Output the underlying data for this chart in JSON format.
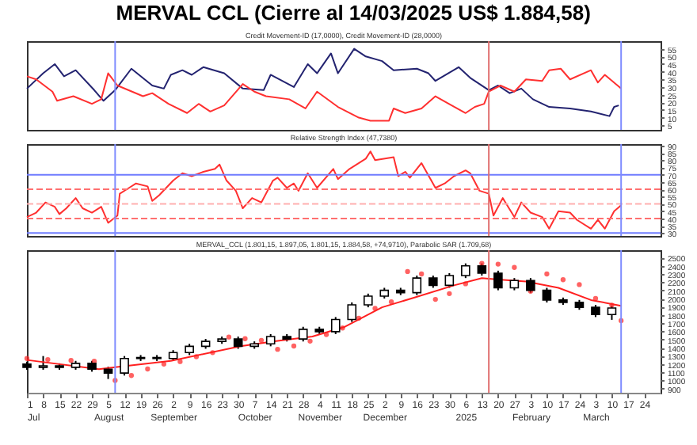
{
  "chart_data": [
    {
      "type": "line",
      "title": "MERVAL CCL (Cierre al 14/03/2025 US$ 1.884,58)",
      "subtitle": "Credit Movement-ID (17,0000), Credit Movement-ID (28,0000)",
      "xlim": [
        "2024-07-01",
        "2025-03-31"
      ],
      "ylim": [
        2,
        60
      ],
      "yticks": [
        5,
        10,
        15,
        20,
        25,
        30,
        35,
        40,
        45,
        50,
        55
      ],
      "tick_labels": "y",
      "ref_lines": [
        {
          "axis": "x",
          "value": "2024-08-08",
          "color": "#7f8cff"
        },
        {
          "axis": "x",
          "value": "2025-01-16",
          "color": "#e07070"
        },
        {
          "axis": "x",
          "value": "2025-03-14",
          "color": "#7f8cff"
        }
      ],
      "series": [
        {
          "color": "#232370",
          "x": [
            "2024-07-01",
            "2024-07-08",
            "2024-07-13",
            "2024-07-17",
            "2024-07-22",
            "2024-07-30",
            "2024-08-03",
            "2024-08-08",
            "2024-08-15",
            "2024-08-24",
            "2024-08-29",
            "2024-09-01",
            "2024-09-06",
            "2024-09-10",
            "2024-09-15",
            "2024-09-24",
            "2024-10-02",
            "2024-10-11",
            "2024-10-14",
            "2024-10-24",
            "2024-10-30",
            "2024-11-03",
            "2024-11-09",
            "2024-11-12",
            "2024-11-19",
            "2024-11-24",
            "2024-12-01",
            "2024-12-06",
            "2024-12-16",
            "2024-12-21",
            "2024-12-24",
            "2025-01-03",
            "2025-01-08",
            "2025-01-16",
            "2025-01-20",
            "2025-01-25",
            "2025-01-30",
            "2025-02-04",
            "2025-02-11",
            "2025-02-20",
            "2025-03-01",
            "2025-03-09",
            "2025-03-11",
            "2025-03-13"
          ],
          "values": [
            29,
            39,
            45,
            37,
            41,
            28,
            21,
            28,
            42,
            31,
            29,
            38,
            41,
            38,
            43,
            39,
            29,
            28,
            38,
            30,
            45,
            39,
            52,
            39,
            55,
            50,
            47,
            41,
            42,
            39,
            34,
            43,
            36,
            28,
            31,
            26,
            29,
            22,
            17,
            16,
            14,
            11,
            17,
            18
          ]
        },
        {
          "color": "#ff3030",
          "x": [
            "2024-07-01",
            "2024-07-05",
            "2024-07-12",
            "2024-07-14",
            "2024-07-21",
            "2024-07-29",
            "2024-08-02",
            "2024-08-05",
            "2024-08-09",
            "2024-08-20",
            "2024-08-24",
            "2024-08-31",
            "2024-09-08",
            "2024-09-13",
            "2024-09-18",
            "2024-09-24",
            "2024-10-02",
            "2024-10-07",
            "2024-10-12",
            "2024-10-22",
            "2024-10-29",
            "2024-11-03",
            "2024-11-12",
            "2024-11-21",
            "2024-11-26",
            "2024-12-04",
            "2024-12-06",
            "2024-12-11",
            "2024-12-18",
            "2024-12-24",
            "2024-12-31",
            "2025-01-06",
            "2025-01-10",
            "2025-01-14",
            "2025-01-16",
            "2025-01-21",
            "2025-01-27",
            "2025-02-01",
            "2025-02-08",
            "2025-02-11",
            "2025-02-16",
            "2025-02-20",
            "2025-03-01",
            "2025-03-04",
            "2025-03-07",
            "2025-03-14"
          ],
          "values": [
            37,
            35,
            27,
            21,
            24,
            19,
            22,
            39,
            31,
            24,
            26,
            19,
            13,
            19,
            14,
            18,
            32,
            27,
            24,
            22,
            16,
            27,
            17,
            10,
            8,
            8,
            16,
            13,
            16,
            24,
            18,
            13,
            17,
            19,
            27,
            31,
            27,
            35,
            34,
            41,
            42,
            35,
            41,
            33,
            38,
            29
          ]
        }
      ]
    },
    {
      "type": "line",
      "title": "Relative Strength Index (47,7380)",
      "xlim": [
        "2024-07-01",
        "2025-03-31"
      ],
      "ylim": [
        28,
        91
      ],
      "yticks": [
        30,
        35,
        40,
        45,
        50,
        55,
        60,
        65,
        70,
        75,
        80,
        85,
        90
      ],
      "tick_labels": "y",
      "ref_lines": [
        {
          "axis": "y",
          "value": 70,
          "color": "#6f7cff"
        },
        {
          "axis": "y",
          "value": 30,
          "color": "#6f7cff"
        },
        {
          "axis": "y",
          "value": 60,
          "color": "#ff7070",
          "line_style": "dashed"
        },
        {
          "axis": "y",
          "value": 50,
          "color": "#ffb0b0",
          "line_style": "dashed"
        },
        {
          "axis": "y",
          "value": 40,
          "color": "#ff7070",
          "line_style": "dashed"
        },
        {
          "axis": "x",
          "value": "2024-08-08",
          "color": "#7f8cff"
        },
        {
          "axis": "x",
          "value": "2025-01-16",
          "color": "#e07070"
        },
        {
          "axis": "x",
          "value": "2025-03-14",
          "color": "#7f8cff"
        }
      ],
      "series": [
        {
          "color": "#ff3030",
          "x": [
            "2024-07-01",
            "2024-07-05",
            "2024-07-09",
            "2024-07-13",
            "2024-07-15",
            "2024-07-18",
            "2024-07-22",
            "2024-07-25",
            "2024-07-29",
            "2024-08-02",
            "2024-08-05",
            "2024-08-09",
            "2024-08-10",
            "2024-08-14",
            "2024-08-17",
            "2024-08-22",
            "2024-08-24",
            "2024-08-27",
            "2024-09-02",
            "2024-09-06",
            "2024-09-10",
            "2024-09-15",
            "2024-09-20",
            "2024-09-22",
            "2024-09-25",
            "2024-09-29",
            "2024-10-02",
            "2024-10-06",
            "2024-10-10",
            "2024-10-15",
            "2024-10-17",
            "2024-10-21",
            "2024-10-24",
            "2024-10-26",
            "2024-10-30",
            "2024-11-03",
            "2024-11-10",
            "2024-11-12",
            "2024-11-17",
            "2024-11-24",
            "2024-11-26",
            "2024-11-28",
            "2024-12-06",
            "2024-12-08",
            "2024-12-11",
            "2024-12-13",
            "2024-12-18",
            "2024-12-24",
            "2024-12-28",
            "2025-01-01",
            "2025-01-06",
            "2025-01-08",
            "2025-01-12",
            "2025-01-16",
            "2025-01-18",
            "2025-01-22",
            "2025-01-27",
            "2025-01-30",
            "2025-02-03",
            "2025-02-08",
            "2025-02-11",
            "2025-02-15",
            "2025-02-20",
            "2025-02-23",
            "2025-03-01",
            "2025-03-04",
            "2025-03-07",
            "2025-03-11",
            "2025-03-14"
          ],
          "values": [
            41,
            44,
            51,
            48,
            43,
            47,
            54,
            47,
            44,
            48,
            37,
            42,
            57,
            61,
            64,
            62,
            52,
            56,
            66,
            71,
            69,
            72,
            74,
            77,
            66,
            59,
            47,
            54,
            51,
            66,
            68,
            61,
            64,
            59,
            71,
            61,
            74,
            67,
            74,
            81,
            86,
            80,
            82,
            69,
            72,
            68,
            78,
            61,
            64,
            69,
            73,
            71,
            59,
            57,
            42,
            54,
            41,
            51,
            44,
            41,
            33,
            45,
            44,
            39,
            33,
            39,
            33,
            45,
            49
          ]
        }
      ]
    },
    {
      "type": "candlestick",
      "title": "MERVAL_CCL (1.801,15, 1.897,05, 1.801,15, 1.884,58, +74,9710), Parabolic SAR (1.709,68)",
      "xlim": [
        "2024-07-01",
        "2025-03-31"
      ],
      "ylim": [
        850,
        2590
      ],
      "yticks": [
        900,
        1000,
        1100,
        1200,
        1300,
        1400,
        1500,
        1600,
        1700,
        1800,
        1900,
        2000,
        2100,
        2200,
        2300,
        2400,
        2500
      ],
      "xticks": [
        {
          "value": "2024-07-01",
          "label": "1\nJul"
        },
        {
          "value": "2024-07-08",
          "label": "8"
        },
        {
          "value": "2024-07-15",
          "label": "15"
        },
        {
          "value": "2024-07-22",
          "label": "22"
        },
        {
          "value": "2024-07-29",
          "label": "29"
        },
        {
          "value": "2024-08-05",
          "label": "5\nAugust"
        },
        {
          "value": "2024-08-12",
          "label": "12"
        },
        {
          "value": "2024-08-19",
          "label": "19"
        },
        {
          "value": "2024-08-26",
          "label": "26"
        },
        {
          "value": "2024-09-02",
          "label": "2\nSeptember"
        },
        {
          "value": "2024-09-09",
          "label": "9"
        },
        {
          "value": "2024-09-16",
          "label": "16"
        },
        {
          "value": "2024-09-23",
          "label": "23"
        },
        {
          "value": "2024-09-30",
          "label": "30"
        },
        {
          "value": "2024-10-07",
          "label": "7\nOctober"
        },
        {
          "value": "2024-10-14",
          "label": "14"
        },
        {
          "value": "2024-10-21",
          "label": "21"
        },
        {
          "value": "2024-10-28",
          "label": "28"
        },
        {
          "value": "2024-11-04",
          "label": "4\nNovember"
        },
        {
          "value": "2024-11-11",
          "label": "11"
        },
        {
          "value": "2024-11-18",
          "label": "18"
        },
        {
          "value": "2024-11-25",
          "label": "25"
        },
        {
          "value": "2024-12-02",
          "label": "2\nDecember"
        },
        {
          "value": "2024-12-09",
          "label": "9"
        },
        {
          "value": "2024-12-16",
          "label": "16"
        },
        {
          "value": "2024-12-23",
          "label": "23"
        },
        {
          "value": "2024-12-30",
          "label": "30"
        },
        {
          "value": "2025-01-06",
          "label": "6\n2025"
        },
        {
          "value": "2025-01-13",
          "label": "13"
        },
        {
          "value": "2025-01-20",
          "label": "20"
        },
        {
          "value": "2025-01-27",
          "label": "27"
        },
        {
          "value": "2025-02-03",
          "label": "3\nFebruary"
        },
        {
          "value": "2025-02-10",
          "label": "10"
        },
        {
          "value": "2025-02-17",
          "label": "17"
        },
        {
          "value": "2025-02-24",
          "label": "24"
        },
        {
          "value": "2025-03-03",
          "label": "3\nMarch"
        },
        {
          "value": "2025-03-10",
          "label": "10"
        },
        {
          "value": "2025-03-17",
          "label": "17"
        },
        {
          "value": "2025-03-24",
          "label": "24"
        }
      ],
      "ref_lines": [
        {
          "axis": "x",
          "value": "2024-08-08",
          "color": "#7f8cff"
        },
        {
          "axis": "x",
          "value": "2025-01-16",
          "color": "#e07070"
        },
        {
          "axis": "x",
          "value": "2025-03-14",
          "color": "#7f8cff"
        }
      ],
      "x": [
        "2024-07-01",
        "2024-07-08",
        "2024-07-15",
        "2024-07-22",
        "2024-07-29",
        "2024-08-05",
        "2024-08-12",
        "2024-08-19",
        "2024-08-26",
        "2024-09-02",
        "2024-09-09",
        "2024-09-16",
        "2024-09-23",
        "2024-09-30",
        "2024-10-07",
        "2024-10-14",
        "2024-10-21",
        "2024-10-28",
        "2024-11-04",
        "2024-11-11",
        "2024-11-18",
        "2024-11-25",
        "2024-12-02",
        "2024-12-09",
        "2024-12-16",
        "2024-12-23",
        "2024-12-30",
        "2025-01-06",
        "2025-01-13",
        "2025-01-20",
        "2025-01-27",
        "2025-02-03",
        "2025-02-10",
        "2025-02-17",
        "2025-02-24",
        "2025-03-03",
        "2025-03-10"
      ],
      "ohlc": [
        [
          1200,
          1230,
          1131,
          1161
        ],
        [
          1161,
          1298,
          1131,
          1179
        ],
        [
          1179,
          1209,
          1131,
          1161
        ],
        [
          1161,
          1239,
          1131,
          1209
        ],
        [
          1209,
          1239,
          1107,
          1137
        ],
        [
          1137,
          1167,
          1018,
          1090
        ],
        [
          1090,
          1298,
          1060,
          1268
        ],
        [
          1268,
          1310,
          1238,
          1280
        ],
        [
          1280,
          1310,
          1238,
          1268
        ],
        [
          1268,
          1370,
          1238,
          1340
        ],
        [
          1340,
          1447,
          1310,
          1417
        ],
        [
          1417,
          1507,
          1387,
          1477
        ],
        [
          1477,
          1536,
          1447,
          1506
        ],
        [
          1506,
          1536,
          1387,
          1417
        ],
        [
          1417,
          1477,
          1387,
          1447
        ],
        [
          1447,
          1566,
          1417,
          1536
        ],
        [
          1536,
          1566,
          1476,
          1506
        ],
        [
          1506,
          1655,
          1476,
          1625
        ],
        [
          1625,
          1655,
          1566,
          1596
        ],
        [
          1596,
          1774,
          1566,
          1744
        ],
        [
          1744,
          1953,
          1714,
          1923
        ],
        [
          1923,
          2060,
          1893,
          2030
        ],
        [
          2030,
          2131,
          2000,
          2101
        ],
        [
          2101,
          2131,
          2042,
          2072
        ],
        [
          2072,
          2280,
          2042,
          2250
        ],
        [
          2250,
          2280,
          2131,
          2161
        ],
        [
          2161,
          2310,
          2131,
          2280
        ],
        [
          2280,
          2429,
          2250,
          2399
        ],
        [
          2399,
          2429,
          2280,
          2310
        ],
        [
          2310,
          2340,
          2101,
          2131
        ],
        [
          2131,
          2250,
          2101,
          2220
        ],
        [
          2220,
          2250,
          2071,
          2101
        ],
        [
          2101,
          2131,
          1952,
          1982
        ],
        [
          1982,
          2012,
          1923,
          1953
        ],
        [
          1953,
          1983,
          1863,
          1893
        ],
        [
          1893,
          1923,
          1774,
          1804
        ],
        [
          1804,
          1915,
          1740,
          1885
        ]
      ],
      "series": [
        {
          "type": "line",
          "color": "#ff2020",
          "x": [
            "2024-07-01",
            "2024-08-01",
            "2024-08-08",
            "2024-09-01",
            "2024-10-01",
            "2024-10-15",
            "2024-11-01",
            "2024-11-15",
            "2024-12-01",
            "2024-12-15",
            "2025-01-01",
            "2025-01-13",
            "2025-01-20",
            "2025-02-01",
            "2025-02-15",
            "2025-03-01",
            "2025-03-14"
          ],
          "values": [
            1250,
            1137,
            1161,
            1239,
            1417,
            1477,
            1536,
            1655,
            1893,
            2012,
            2161,
            2250,
            2232,
            2208,
            2131,
            1982,
            1911
          ]
        },
        {
          "type": "scatter",
          "marker": "circle",
          "color": "#ff2020",
          "x": [
            "2024-07-01",
            "2024-07-10",
            "2024-07-20",
            "2024-07-30",
            "2024-08-08",
            "2024-08-15",
            "2024-08-22",
            "2024-08-29",
            "2024-09-05",
            "2024-09-12",
            "2024-09-19",
            "2024-09-26",
            "2024-10-03",
            "2024-10-10",
            "2024-10-17",
            "2024-10-24",
            "2024-10-31",
            "2024-11-07",
            "2024-11-14",
            "2024-11-21",
            "2024-11-28",
            "2024-12-05",
            "2024-12-12",
            "2024-12-18",
            "2024-12-24",
            "2024-12-30",
            "2025-01-06",
            "2025-01-13",
            "2025-01-20",
            "2025-01-27",
            "2025-02-03",
            "2025-02-10",
            "2025-02-17",
            "2025-02-24",
            "2025-03-03",
            "2025-03-10",
            "2025-03-14"
          ],
          "values": [
            1268,
            1255,
            1245,
            1235,
            1000,
            1060,
            1140,
            1200,
            1230,
            1290,
            1340,
            1530,
            1510,
            1490,
            1380,
            1420,
            1480,
            1560,
            1640,
            1760,
            1880,
            1960,
            2330,
            2300,
            1990,
            2060,
            2180,
            2430,
            2420,
            2380,
            2090,
            2300,
            2230,
            2170,
            2000,
            1920,
            1730
          ]
        }
      ]
    }
  ]
}
